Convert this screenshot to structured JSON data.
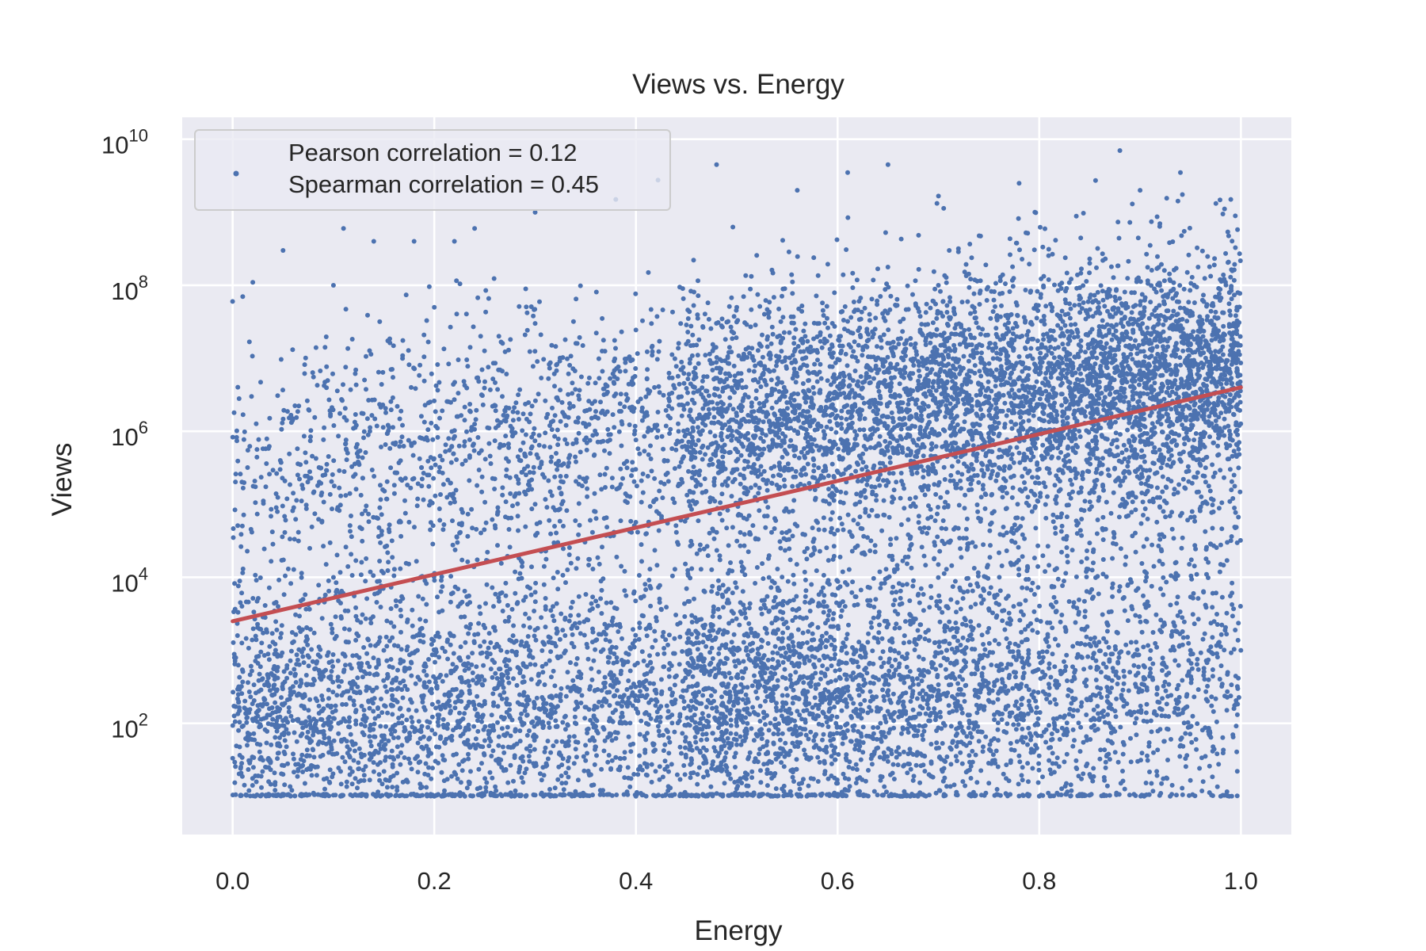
{
  "chart_data": {
    "type": "scatter",
    "title": "Views vs. Energy",
    "xlabel": "Energy",
    "ylabel": "Views",
    "xlim": [
      -0.05,
      1.05
    ],
    "ylim": [
      3,
      20000000000
    ],
    "yscale": "log",
    "grid": true,
    "x_ticks": [
      0.0,
      0.2,
      0.4,
      0.6,
      0.8,
      1.0
    ],
    "x_tick_labels": [
      "0.0",
      "0.2",
      "0.4",
      "0.6",
      "0.8",
      "1.0"
    ],
    "y_ticks": [
      100,
      10000,
      1000000,
      100000000,
      10000000000
    ],
    "y_tick_labels": [
      {
        "base": "10",
        "exp": "2"
      },
      {
        "base": "10",
        "exp": "4"
      },
      {
        "base": "10",
        "exp": "6"
      },
      {
        "base": "10",
        "exp": "8"
      },
      {
        "base": "10",
        "exp": "10"
      }
    ],
    "legend": {
      "placement": "top-left",
      "lines": [
        "Pearson correlation = 0.12",
        "Spearman correlation = 0.45"
      ]
    },
    "series": [
      {
        "kind": "points",
        "color": "#4c72b0",
        "approx_point_count": 40000,
        "x_range": [
          0.0,
          1.0
        ],
        "y_range": [
          10,
          7000000000
        ],
        "points": [
          [
            0.0,
            60000000
          ],
          [
            0.01,
            70000000
          ],
          [
            0.02,
            110000000
          ],
          [
            0.05,
            300000000
          ],
          [
            0.11,
            600000000
          ],
          [
            0.14,
            400000000
          ],
          [
            0.18,
            400000000
          ],
          [
            0.22,
            400000000
          ],
          [
            0.24,
            600000000
          ],
          [
            0.3,
            1000000000
          ],
          [
            0.38,
            1500000000
          ],
          [
            0.48,
            4500000000
          ],
          [
            0.56,
            2000000000
          ],
          [
            0.61,
            3500000000
          ],
          [
            0.65,
            4500000000
          ],
          [
            0.78,
            2500000000
          ],
          [
            0.88,
            7000000000
          ],
          [
            0.94,
            3500000000
          ],
          [
            0.9,
            2000000000
          ],
          [
            0.99,
            1500000000
          ],
          [
            0.1,
            100000000
          ],
          [
            0.2,
            50000000
          ],
          [
            0.3,
            30000000
          ],
          [
            0.5,
            50000000
          ],
          [
            0.7,
            100000000
          ],
          [
            0.85,
            200000000
          ],
          [
            0.15,
            1000
          ],
          [
            0.25,
            200
          ],
          [
            0.35,
            50
          ],
          [
            0.45,
            500
          ],
          [
            0.55,
            100
          ],
          [
            0.65,
            30
          ],
          [
            0.75,
            2000
          ],
          [
            0.85,
            20
          ],
          [
            0.95,
            1000
          ],
          [
            0.05,
            20
          ],
          [
            0.2,
            10
          ],
          [
            0.4,
            10
          ],
          [
            0.6,
            10
          ],
          [
            0.8,
            10
          ],
          [
            0.98,
            10
          ],
          [
            0.5,
            1000000
          ],
          [
            0.7,
            5000000
          ],
          [
            0.9,
            3000000
          ],
          [
            0.3,
            100000
          ],
          [
            0.1,
            10000
          ]
        ]
      },
      {
        "kind": "fit-line",
        "color": "#c44e52",
        "x": [
          0.0,
          1.0
        ],
        "y": [
          2500,
          4000000
        ]
      }
    ]
  }
}
